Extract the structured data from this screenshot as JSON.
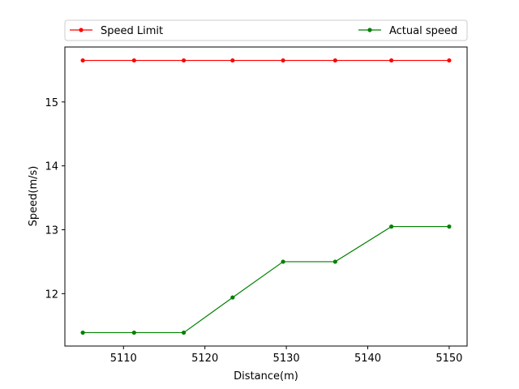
{
  "chart_data": {
    "type": "line",
    "xlabel": "Distance(m)",
    "ylabel": "Speed(m/s)",
    "xlim": [
      5102.8,
      5152.2
    ],
    "ylim": [
      11.18,
      15.86
    ],
    "x_ticks": [
      5110,
      5120,
      5130,
      5140,
      5150
    ],
    "y_ticks": [
      12,
      13,
      14,
      15
    ],
    "grid": false,
    "legend_position": "top",
    "series": [
      {
        "name": "Speed Limit",
        "color": "#ff0000",
        "marker": "circle",
        "x": [
          5105.0,
          5111.3,
          5117.4,
          5123.4,
          5129.6,
          5136.0,
          5142.9,
          5150.0
        ],
        "y": [
          15.65,
          15.65,
          15.65,
          15.65,
          15.65,
          15.65,
          15.65,
          15.65
        ]
      },
      {
        "name": "Actual speed",
        "color": "#008000",
        "marker": "circle",
        "x": [
          5105.0,
          5111.3,
          5117.4,
          5123.4,
          5129.6,
          5136.0,
          5142.9,
          5150.0
        ],
        "y": [
          11.39,
          11.39,
          11.39,
          11.94,
          12.5,
          12.5,
          13.05,
          13.05
        ]
      }
    ]
  }
}
